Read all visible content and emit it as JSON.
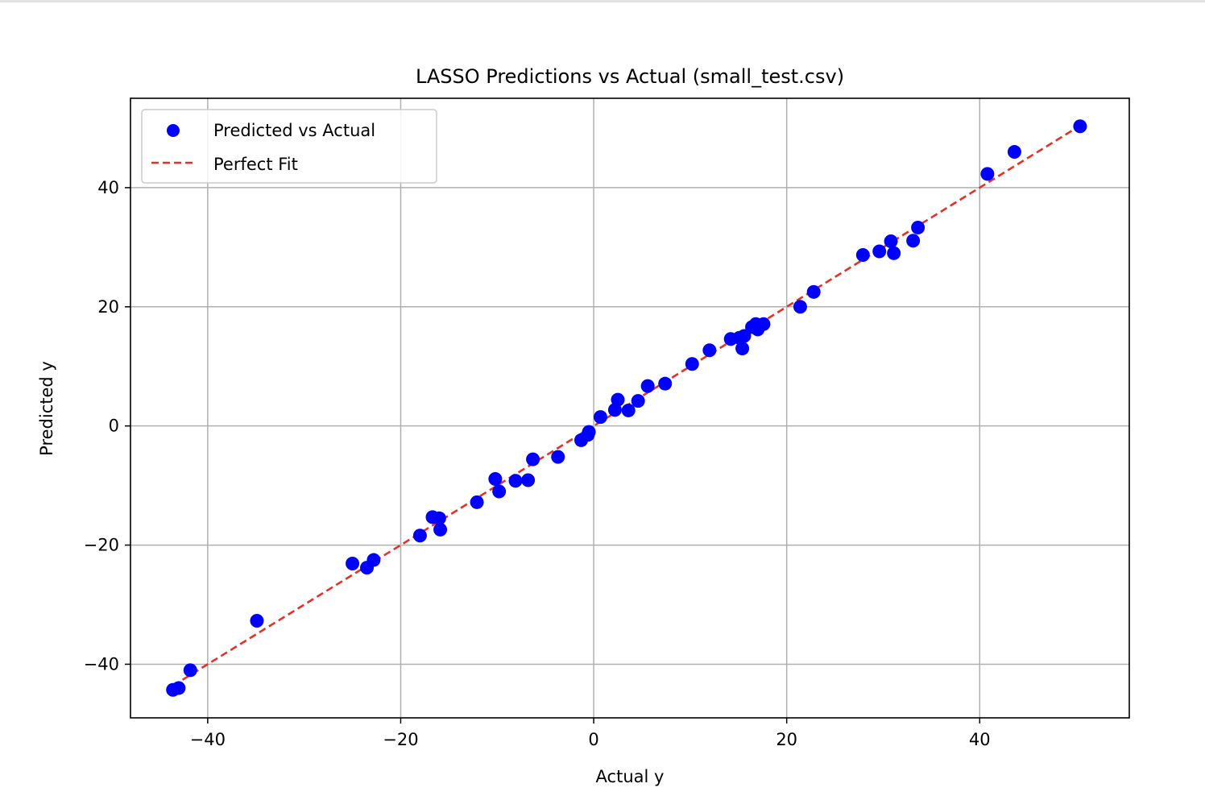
{
  "chart_data": {
    "type": "scatter",
    "title": "LASSO Predictions vs Actual (small_test.csv)",
    "xlabel": "Actual y",
    "ylabel": "Predicted y",
    "xlim": [
      -48,
      55.5
    ],
    "ylim": [
      -49,
      55
    ],
    "xticks": [
      -40,
      -20,
      0,
      20,
      40
    ],
    "yticks": [
      -40,
      -20,
      0,
      20,
      40
    ],
    "grid": true,
    "legend_position": "upper-left",
    "series": [
      {
        "name": "Predicted vs Actual",
        "kind": "scatter",
        "color": "#0000ff",
        "points": [
          [
            -43.6,
            -44.3
          ],
          [
            -43.0,
            -44.0
          ],
          [
            -41.8,
            -41.0
          ],
          [
            -34.9,
            -32.7
          ],
          [
            -25.0,
            -23.1
          ],
          [
            -23.5,
            -23.8
          ],
          [
            -22.8,
            -22.5
          ],
          [
            -18.0,
            -18.4
          ],
          [
            -16.7,
            -15.3
          ],
          [
            -16.0,
            -15.5
          ],
          [
            -15.9,
            -17.4
          ],
          [
            -12.1,
            -12.8
          ],
          [
            -10.2,
            -8.9
          ],
          [
            -9.8,
            -11.0
          ],
          [
            -8.1,
            -9.2
          ],
          [
            -6.8,
            -9.1
          ],
          [
            -6.3,
            -5.6
          ],
          [
            -3.7,
            -5.2
          ],
          [
            -1.3,
            -2.4
          ],
          [
            -0.6,
            -1.5
          ],
          [
            -0.5,
            -1.0
          ],
          [
            0.7,
            1.5
          ],
          [
            2.2,
            2.7
          ],
          [
            2.5,
            4.4
          ],
          [
            3.6,
            2.6
          ],
          [
            4.6,
            4.2
          ],
          [
            5.6,
            6.7
          ],
          [
            7.4,
            7.1
          ],
          [
            10.2,
            10.4
          ],
          [
            12.0,
            12.7
          ],
          [
            14.2,
            14.6
          ],
          [
            15.1,
            14.8
          ],
          [
            15.6,
            15.1
          ],
          [
            15.4,
            13.0
          ],
          [
            16.4,
            16.6
          ],
          [
            17.0,
            16.2
          ],
          [
            16.8,
            17.1
          ],
          [
            17.6,
            17.1
          ],
          [
            21.4,
            20.0
          ],
          [
            22.8,
            22.5
          ],
          [
            27.9,
            28.7
          ],
          [
            29.6,
            29.3
          ],
          [
            30.8,
            31.0
          ],
          [
            31.1,
            29.0
          ],
          [
            33.1,
            31.1
          ],
          [
            33.6,
            33.3
          ],
          [
            40.8,
            42.3
          ],
          [
            43.6,
            46.0
          ],
          [
            50.4,
            50.3
          ]
        ]
      },
      {
        "name": "Perfect Fit",
        "kind": "line",
        "style": "dashed",
        "color": "#e0332a",
        "x": [
          -43.6,
          50.4
        ],
        "y": [
          -43.6,
          50.4
        ]
      }
    ]
  }
}
